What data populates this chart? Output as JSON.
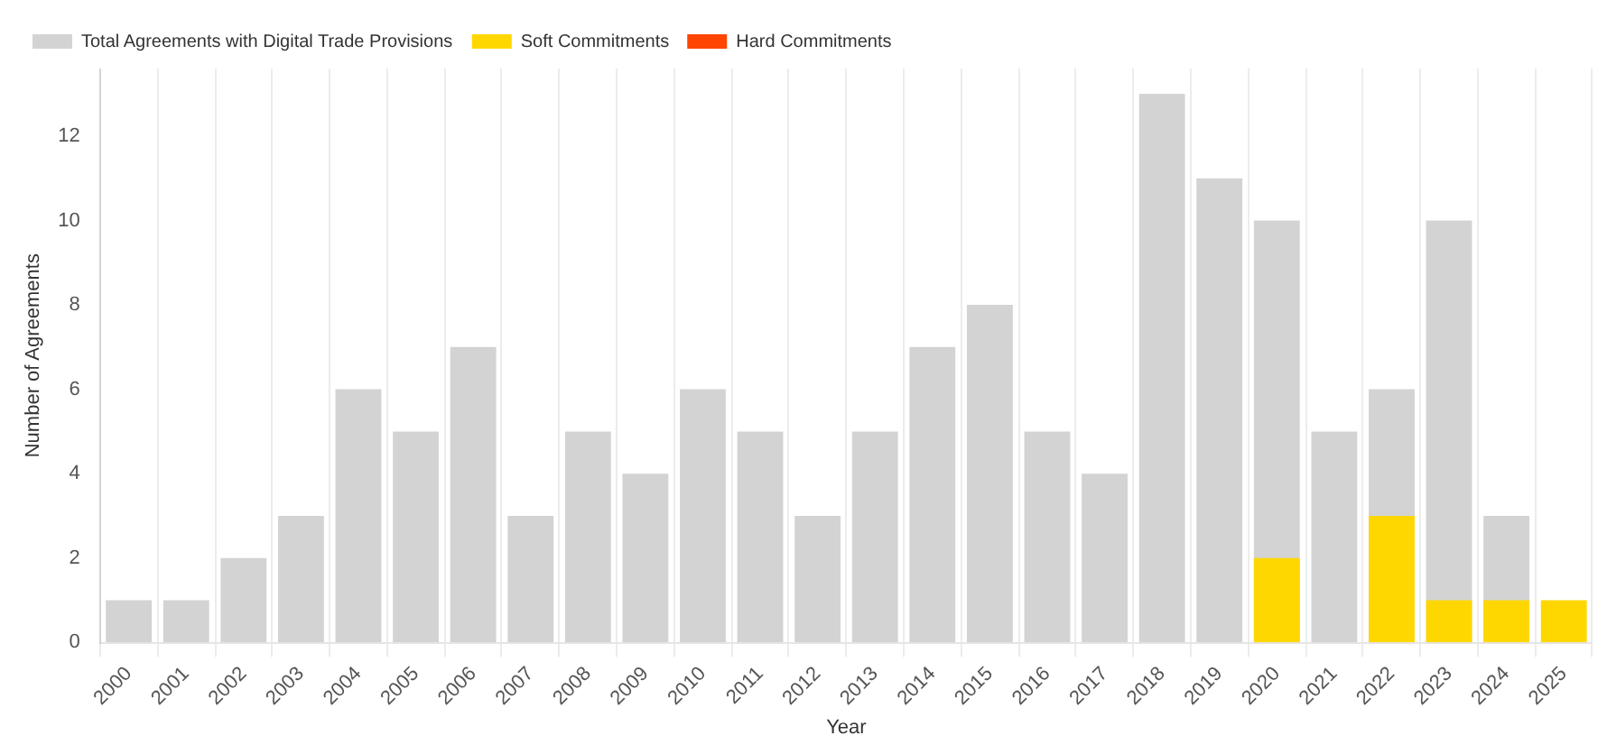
{
  "chart_data": {
    "type": "bar",
    "xlabel": "Year",
    "ylabel": "Number of Agreements",
    "categories": [
      "2000",
      "2001",
      "2002",
      "2003",
      "2004",
      "2005",
      "2006",
      "2007",
      "2008",
      "2009",
      "2010",
      "2011",
      "2012",
      "2013",
      "2014",
      "2015",
      "2016",
      "2017",
      "2018",
      "2019",
      "2020",
      "2021",
      "2022",
      "2023",
      "2024",
      "2025"
    ],
    "series": [
      {
        "name": "Total Agreements with Digital Trade Provisions",
        "color": "#d3d3d3",
        "values": [
          1,
          1,
          2,
          3,
          6,
          5,
          7,
          3,
          5,
          4,
          6,
          5,
          3,
          5,
          7,
          8,
          5,
          4,
          13,
          11,
          10,
          5,
          6,
          10,
          3,
          null
        ]
      },
      {
        "name": "Soft Commitments",
        "color": "#ffd700",
        "values": [
          0,
          0,
          0,
          0,
          0,
          0,
          0,
          0,
          0,
          0,
          0,
          0,
          0,
          0,
          0,
          0,
          0,
          0,
          0,
          0,
          2,
          0,
          3,
          1,
          1,
          1
        ]
      },
      {
        "name": "Hard Commitments",
        "color": "#ff4500",
        "values": [
          0,
          0,
          0,
          0,
          0,
          0,
          0,
          0,
          0,
          0,
          0,
          0,
          0,
          0,
          0,
          0,
          0,
          0,
          0,
          0,
          0,
          0,
          0,
          0,
          0,
          0
        ]
      }
    ],
    "ylim": [
      0,
      13.6
    ],
    "yticks": [
      0,
      2,
      4,
      6,
      8,
      10,
      12
    ],
    "grid": "x",
    "legend": "top left"
  }
}
